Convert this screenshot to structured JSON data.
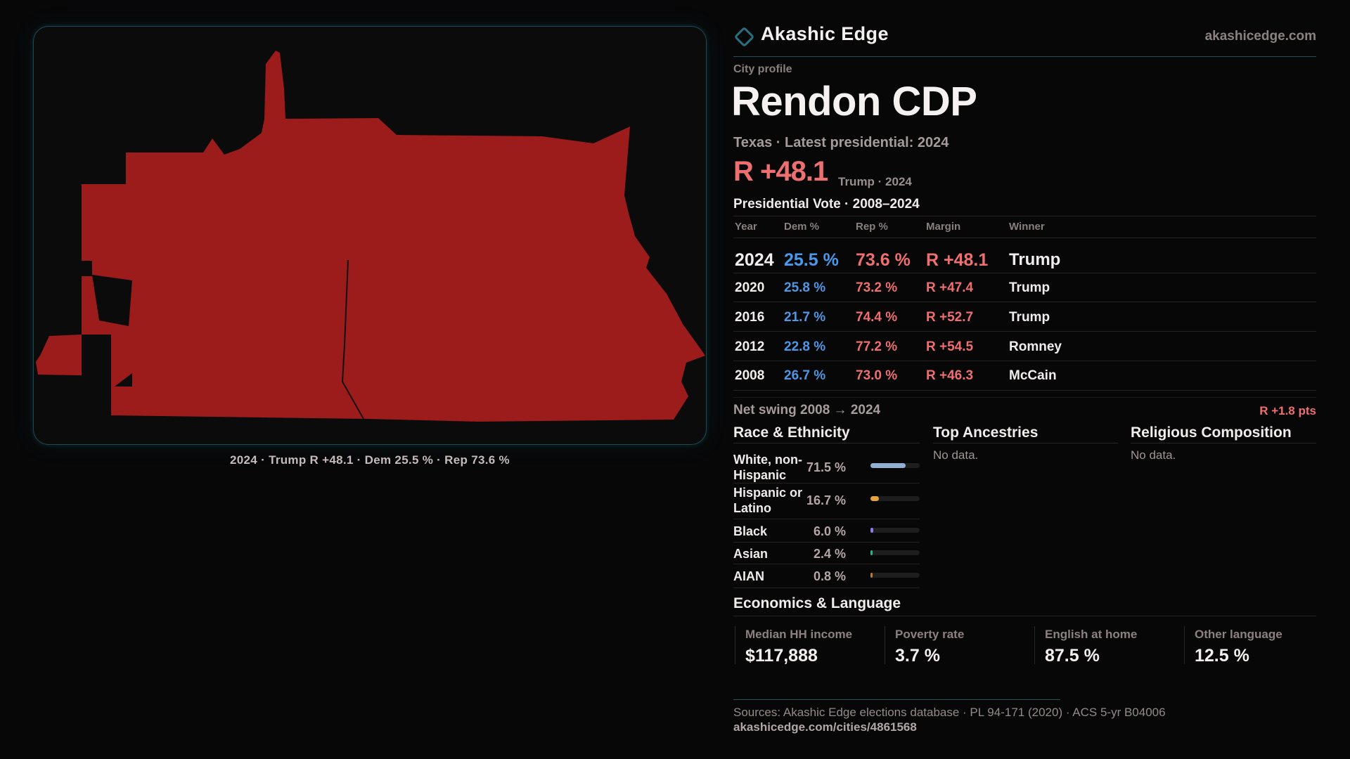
{
  "brand": {
    "name": "Akashic Edge",
    "site": "akashicedge.com",
    "diamond_icon": "diamond-outline",
    "accent_teal": "#27707f"
  },
  "profile": {
    "kicker": "City profile",
    "title": "Rendon CDP",
    "subtitle": "Texas · Latest presidential: 2024",
    "headline_margin": "R +48.1",
    "headline_note": "Trump · 2024"
  },
  "map": {
    "caption": "2024 · Trump R +48.1 · Dem 25.5 % · Rep 73.6 %",
    "fill_color": "#9c1b1b",
    "margin_color": "#ee6f6f"
  },
  "vote_table": {
    "title": "Presidential Vote · 2008–2024",
    "columns": [
      "Year",
      "Dem %",
      "Rep %",
      "Margin",
      "Winner"
    ],
    "rows": [
      {
        "year": "2024",
        "dem": "25.5 %",
        "rep": "73.6 %",
        "margin": "R +48.1",
        "winner": "Trump"
      },
      {
        "year": "2020",
        "dem": "25.8 %",
        "rep": "73.2 %",
        "margin": "R +47.4",
        "winner": "Trump"
      },
      {
        "year": "2016",
        "dem": "21.7 %",
        "rep": "74.4 %",
        "margin": "R +52.7",
        "winner": "Trump"
      },
      {
        "year": "2012",
        "dem": "22.8 %",
        "rep": "77.2 %",
        "margin": "R +54.5",
        "winner": "Romney"
      },
      {
        "year": "2008",
        "dem": "26.7 %",
        "rep": "73.0 %",
        "margin": "R +46.3",
        "winner": "McCain"
      }
    ],
    "net_swing_label": "Net swing 2008 → 2024",
    "net_swing_value": "R +1.8 pts",
    "dem_color": "#4e97e4",
    "rep_color": "#ef6f6f"
  },
  "race": {
    "title": "Race & Ethnicity",
    "rows": [
      {
        "label": "White, non-Hispanic",
        "label_lines": [
          "White, non-",
          "Hispanic"
        ],
        "value": "71.5 %",
        "pct": 71.5,
        "color": "#92aed0"
      },
      {
        "label": "Hispanic or Latino",
        "label_lines": [
          "Hispanic or",
          "Latino"
        ],
        "value": "16.7 %",
        "pct": 16.7,
        "color": "#e6a23c"
      },
      {
        "label": "Black",
        "label_lines": [
          "Black"
        ],
        "value": "6.0 %",
        "pct": 6.0,
        "color": "#8f79e8"
      },
      {
        "label": "Asian",
        "label_lines": [
          "Asian"
        ],
        "value": "2.4 %",
        "pct": 2.4,
        "color": "#27b585"
      },
      {
        "label": "AIAN",
        "label_lines": [
          "AIAN"
        ],
        "value": "0.8 %",
        "pct": 0.8,
        "color": "#bf7732"
      }
    ]
  },
  "ancestries": {
    "title": "Top Ancestries",
    "empty": "No data."
  },
  "religion": {
    "title": "Religious Composition",
    "empty": "No data."
  },
  "economics": {
    "title": "Economics & Language",
    "stats": [
      {
        "label": "Median HH income",
        "value": "$117,888"
      },
      {
        "label": "Poverty rate",
        "value": "3.7 %"
      },
      {
        "label": "English at home",
        "value": "87.5 %"
      },
      {
        "label": "Other language",
        "value": "12.5 %"
      }
    ]
  },
  "footer": {
    "sources": "Sources: Akashic Edge elections database · PL 94-171 (2020) · ACS 5-yr B04006",
    "permalink": "akashicedge.com/cities/4861568"
  }
}
